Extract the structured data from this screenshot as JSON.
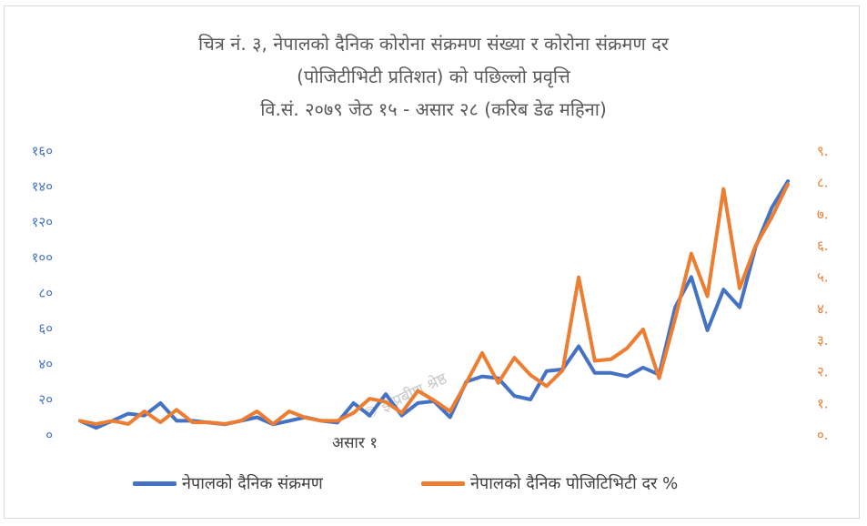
{
  "chart_data": {
    "type": "line",
    "title": [
      "चित्र नं. ३, नेपालको दैनिक कोरोना संक्रमण संख्या र कोरोना संक्रमण दर",
      "(पोजिटीभिटी प्रतिशत) को पछिल्लो प्रवृत्ति",
      "वि.सं. २०७९ जेठ १५ - असार २८ (करिब डेढ महिना)"
    ],
    "category_label": "असार १",
    "category_label_index": 17,
    "watermark": "© इं प्रबीण श्रेष्ठ",
    "left_axis": {
      "ylim": [
        0,
        160
      ],
      "ticks": [
        0,
        20,
        40,
        60,
        80,
        100,
        120,
        140,
        160
      ],
      "tick_labels": [
        "०",
        "२०",
        "४०",
        "६०",
        "८०",
        "१००",
        "१२०",
        "१४०",
        "१६०"
      ]
    },
    "right_axis": {
      "ylim": [
        0,
        9
      ],
      "ticks": [
        0,
        1,
        2,
        3,
        4,
        5,
        6,
        7,
        8,
        9
      ],
      "tick_labels": [
        "०.",
        "१.",
        "२.",
        "३.",
        "४.",
        "५.",
        "६.",
        "७.",
        "८.",
        "९."
      ]
    },
    "grid": false,
    "legend_position": "bottom",
    "series": [
      {
        "name": "नेपालको दैनिक संक्रमण",
        "axis": "left",
        "color": "#4472c4",
        "values": [
          8,
          4,
          8,
          12,
          11,
          18,
          8,
          8,
          7,
          6,
          8,
          10,
          6,
          8,
          10,
          8,
          7,
          18,
          11,
          23,
          11,
          18,
          19,
          10,
          30,
          33,
          32,
          22,
          20,
          36,
          37,
          50,
          35,
          35,
          33,
          38,
          34,
          72,
          89,
          59,
          82,
          72,
          106,
          128,
          143
        ]
      },
      {
        "name": "नेपालको दैनिक पोजिटिभिटी दर %",
        "axis": "right",
        "color": "#ed7d31",
        "values": [
          0.45,
          0.35,
          0.45,
          0.35,
          0.75,
          0.4,
          0.8,
          0.4,
          0.4,
          0.35,
          0.45,
          0.75,
          0.35,
          0.75,
          0.55,
          0.45,
          0.45,
          0.7,
          1.15,
          1.05,
          0.7,
          1.4,
          1.1,
          0.75,
          1.65,
          2.6,
          1.65,
          2.45,
          1.9,
          1.55,
          2.05,
          5.0,
          2.35,
          2.4,
          2.75,
          3.35,
          1.8,
          3.7,
          5.75,
          4.4,
          7.8,
          4.65,
          6.0,
          6.9,
          7.95
        ]
      }
    ]
  }
}
